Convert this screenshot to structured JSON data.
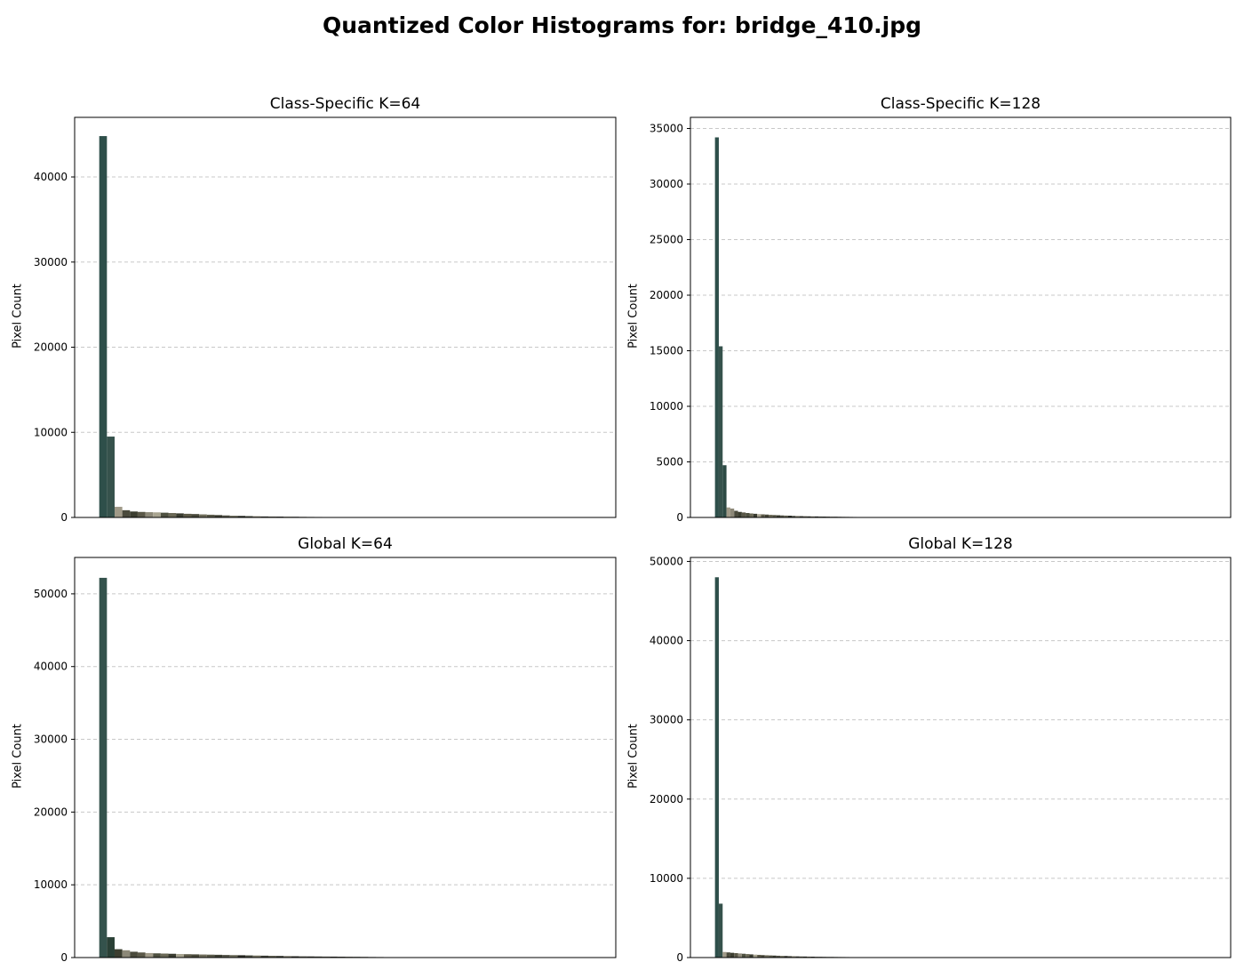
{
  "figure": {
    "title": "Quantized Color Histograms for: bridge_410.jpg"
  },
  "chart_data": [
    {
      "type": "bar",
      "title": "Class-Specific K=64",
      "xlabel": "",
      "ylabel": "Pixel Count",
      "ylim": [
        0,
        47000
      ],
      "yticks": [
        0,
        10000,
        20000,
        30000,
        40000
      ],
      "grid": "y-dashed",
      "num_bins": 64,
      "values": [
        44800,
        9500,
        1250,
        850,
        700,
        650,
        620,
        600,
        560,
        520,
        480,
        430,
        400,
        360,
        320,
        280,
        240,
        200,
        180,
        160,
        140,
        120,
        110,
        100,
        90,
        80,
        70,
        60,
        55,
        50,
        45,
        40,
        35,
        30,
        28,
        25,
        22,
        20,
        18,
        15,
        12,
        10
      ],
      "colors": [
        "#2e4f4a",
        "#36524c",
        "#a09a88",
        "#4a4a3c",
        "#3c3e30",
        "#5a5848",
        "#8c8878",
        "#a8a490",
        "#4e5040",
        "#6a6856",
        "#3a3c30",
        "#5c5a48",
        "#48483a",
        "#6e6c5a",
        "#5a5a4a",
        "#3e4034",
        "#56564a",
        "#6a6a58",
        "#2a2c24",
        "#4a4c40",
        "#7a7866",
        "#40423a",
        "#5e5e50",
        "#34362e",
        "#6c6a5a",
        "#2c2e28",
        "#52544a",
        "#3a3c34",
        "#484a40",
        "#5c5e52",
        "#2e302a",
        "#404238",
        "#4c4e44",
        "#36382e",
        "#2a2c26",
        "#52544a",
        "#3e4036",
        "#262822",
        "#4a4c42",
        "#343630",
        "#2c2e28",
        "#3a3c34"
      ]
    },
    {
      "type": "bar",
      "title": "Class-Specific K=128",
      "xlabel": "",
      "ylabel": "Pixel Count",
      "ylim": [
        0,
        36000
      ],
      "yticks": [
        0,
        5000,
        10000,
        15000,
        20000,
        25000,
        30000,
        35000
      ],
      "grid": "y-dashed",
      "num_bins": 128,
      "values": [
        34200,
        15400,
        4700,
        900,
        800,
        600,
        500,
        450,
        400,
        360,
        330,
        300,
        280,
        260,
        240,
        220,
        200,
        185,
        170,
        155,
        140,
        130,
        120,
        110,
        100,
        95,
        90,
        85,
        80,
        75,
        70,
        65,
        60,
        55,
        50,
        45,
        42,
        40,
        38,
        35,
        32,
        30,
        28,
        26,
        24,
        22,
        20,
        18,
        16,
        14,
        12,
        10
      ],
      "colors": [
        "#2e4f4a",
        "#36524c",
        "#2c4a44",
        "#a09a88",
        "#8c8878",
        "#4a4a3c",
        "#3c3e30",
        "#5a5848",
        "#4e5040",
        "#6a6856",
        "#3a3c30",
        "#a8a490",
        "#5c5a48",
        "#48483a",
        "#6e6c5a",
        "#5a5a4a",
        "#3e4034",
        "#56564a",
        "#6a6a58",
        "#2a2c24",
        "#4a4c40",
        "#7a7866",
        "#40423a",
        "#5e5e50",
        "#34362e",
        "#6c6a5a",
        "#2c2e28",
        "#52544a",
        "#3a3c34",
        "#484a40",
        "#5c5e52",
        "#2e302a",
        "#404238",
        "#4c4e44",
        "#36382e",
        "#2a2c26",
        "#52544a",
        "#3e4036",
        "#262822",
        "#4a4c42",
        "#343630",
        "#2c2e28",
        "#3a3c34",
        "#444638",
        "#30322a",
        "#3c3e34",
        "#282a24",
        "#46483e",
        "#32342c",
        "#2a2c26",
        "#383a32",
        "#2e302a"
      ]
    },
    {
      "type": "bar",
      "title": "Global K=64",
      "xlabel": "",
      "ylabel": "Pixel Count",
      "ylim": [
        0,
        55000
      ],
      "yticks": [
        0,
        10000,
        20000,
        30000,
        40000,
        50000
      ],
      "grid": "y-dashed",
      "num_bins": 64,
      "values": [
        52200,
        2800,
        1150,
        1000,
        800,
        700,
        620,
        580,
        550,
        520,
        490,
        460,
        440,
        420,
        400,
        380,
        360,
        340,
        320,
        300,
        280,
        260,
        240,
        220,
        200,
        180,
        170,
        160,
        150,
        140,
        130,
        120,
        110,
        100,
        90,
        80,
        70,
        60,
        50,
        45,
        40,
        35
      ],
      "colors": [
        "#34524c",
        "#2a4036",
        "#3c3e30",
        "#8c8878",
        "#4a4a3c",
        "#5a5848",
        "#a09a88",
        "#4e5040",
        "#6a6856",
        "#3a3c30",
        "#a8a490",
        "#5c5a48",
        "#48483a",
        "#6e6c5a",
        "#5a5a4a",
        "#3e4034",
        "#56564a",
        "#6a6a58",
        "#2a2c24",
        "#4a4c40",
        "#7a7866",
        "#40423a",
        "#5e5e50",
        "#34362e",
        "#6c6a5a",
        "#2c2e28",
        "#52544a",
        "#3a3c34",
        "#484a40",
        "#5c5e52",
        "#2e302a",
        "#404238",
        "#4c4e44",
        "#36382e",
        "#2a2c26",
        "#52544a",
        "#3e4036",
        "#262822",
        "#4a4c42",
        "#343630",
        "#2c2e28",
        "#3a3c34"
      ]
    },
    {
      "type": "bar",
      "title": "Global K=128",
      "xlabel": "",
      "ylabel": "Pixel Count",
      "ylim": [
        0,
        50500
      ],
      "yticks": [
        0,
        10000,
        20000,
        30000,
        40000,
        50000
      ],
      "grid": "y-dashed",
      "num_bins": 128,
      "values": [
        48000,
        6800,
        700,
        650,
        600,
        560,
        520,
        480,
        440,
        400,
        370,
        340,
        310,
        290,
        270,
        250,
        230,
        210,
        195,
        180,
        165,
        150,
        140,
        130,
        120,
        110,
        100,
        95,
        90,
        85,
        80,
        75,
        70,
        65,
        60,
        55,
        50,
        45,
        42,
        40,
        38,
        35,
        32,
        30,
        28,
        26,
        24,
        22,
        20,
        18,
        16,
        14,
        12,
        10
      ],
      "colors": [
        "#2e4f4a",
        "#36524c",
        "#a09a88",
        "#4a4a3c",
        "#3c3e30",
        "#5a5848",
        "#8c8878",
        "#4e5040",
        "#6a6856",
        "#3a3c30",
        "#a8a490",
        "#5c5a48",
        "#48483a",
        "#6e6c5a",
        "#5a5a4a",
        "#3e4034",
        "#56564a",
        "#6a6a58",
        "#2a2c24",
        "#4a4c40",
        "#7a7866",
        "#40423a",
        "#5e5e50",
        "#34362e",
        "#6c6a5a",
        "#2c2e28",
        "#52544a",
        "#3a3c34",
        "#484a40",
        "#5c5e52",
        "#2e302a",
        "#404238",
        "#4c4e44",
        "#36382e",
        "#2a2c26",
        "#52544a",
        "#3e4036",
        "#262822",
        "#4a4c42",
        "#343630",
        "#2c2e28",
        "#3a3c34",
        "#444638",
        "#30322a",
        "#3c3e34",
        "#282a24",
        "#46483e",
        "#32342c",
        "#2a2c26",
        "#383a32",
        "#2e302a",
        "#363830",
        "#2c2e28",
        "#323430"
      ]
    }
  ]
}
